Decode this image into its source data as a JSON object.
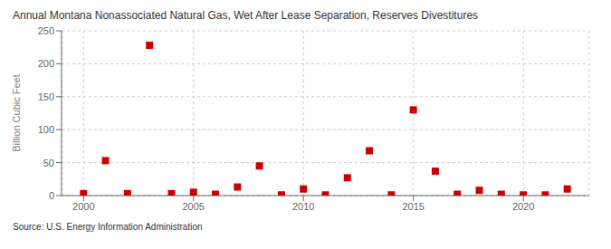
{
  "chart_data": {
    "type": "scatter",
    "title": "Annual Montana Nonassociated Natural Gas, Wet After Lease Separation, Reserves Divestitures",
    "ylabel": "Billion Cubic Feet",
    "annotations": [
      "Source: U.S. Energy Information Administration"
    ],
    "x": [
      2000,
      2001,
      2002,
      2003,
      2004,
      2005,
      2006,
      2007,
      2008,
      2009,
      2010,
      2011,
      2012,
      2013,
      2014,
      2015,
      2016,
      2017,
      2018,
      2019,
      2020,
      2021,
      2022
    ],
    "values": [
      3,
      53,
      3,
      228,
      3,
      5,
      2,
      13,
      45,
      1,
      10,
      1,
      27,
      68,
      1,
      130,
      37,
      2,
      8,
      2,
      1,
      1,
      10
    ],
    "color": "#cc0000",
    "marker": "square",
    "xlim": [
      1999,
      2023
    ],
    "xticks": [
      2000,
      2005,
      2010,
      2015,
      2020
    ],
    "ylim": [
      0,
      250
    ],
    "yticks": [
      0,
      50,
      100,
      150,
      200,
      250
    ],
    "grid": true
  }
}
